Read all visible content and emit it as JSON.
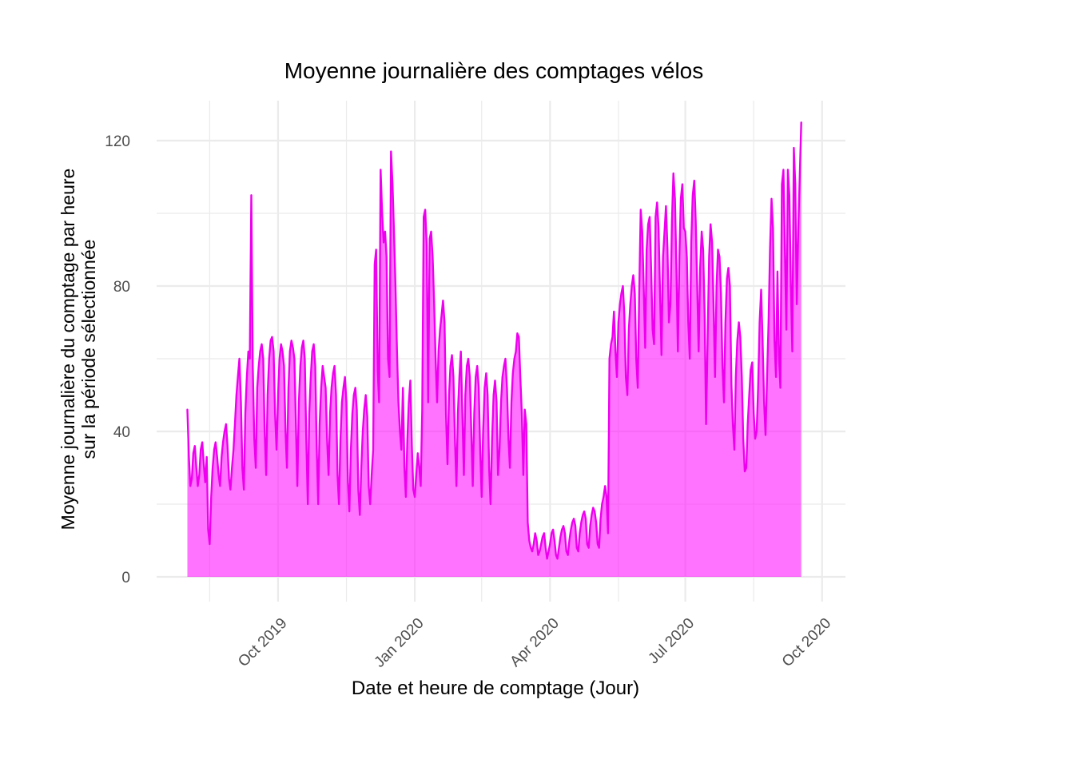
{
  "chart_data": {
    "type": "area",
    "title": "Moyenne journalière des comptages vélos",
    "xlabel": "Date et heure de comptage (Jour)",
    "ylabel_line1": "Moyenne journalière du comptage par heure",
    "ylabel_line2": "sur la période sélectionnée",
    "start_date": "2019-08-01",
    "end_date": "2020-09-17",
    "frequency": "daily",
    "ylim": [
      0,
      126
    ],
    "grid": true,
    "legend": "none",
    "y_ticks": [
      0,
      40,
      80,
      120
    ],
    "y_minor": [
      20,
      60,
      100
    ],
    "x_ticks": [
      {
        "label": "Oct 2019",
        "day": 61
      },
      {
        "label": "Jan 2020",
        "day": 153
      },
      {
        "label": "Apr 2020",
        "day": 244
      },
      {
        "label": "Jul 2020",
        "day": 335
      },
      {
        "label": "Oct 2020",
        "day": 427
      }
    ],
    "x_minor_days": [
      15,
      107,
      198,
      290,
      381
    ],
    "colors": {
      "line": "#EE00EE",
      "fill": "rgba(255,0,255,0.55)",
      "grid": "#EBEBEB",
      "tick_text": "#4D4D4D",
      "text": "#000000",
      "background": "#FFFFFF"
    },
    "values": [
      46,
      33,
      25,
      27,
      34,
      36,
      30,
      25,
      28,
      35,
      37,
      31,
      26,
      33,
      13,
      9,
      22,
      30,
      35,
      37,
      33,
      28,
      25,
      33,
      37,
      40,
      42,
      36,
      27,
      24,
      30,
      35,
      42,
      50,
      55,
      60,
      48,
      30,
      24,
      45,
      55,
      62,
      60,
      105,
      58,
      38,
      30,
      52,
      58,
      62,
      64,
      60,
      40,
      28,
      50,
      60,
      65,
      66,
      62,
      45,
      35,
      50,
      60,
      64,
      62,
      58,
      40,
      30,
      52,
      62,
      65,
      63,
      60,
      42,
      25,
      48,
      58,
      63,
      65,
      60,
      38,
      20,
      45,
      55,
      62,
      64,
      58,
      36,
      20,
      42,
      52,
      58,
      55,
      52,
      38,
      28,
      45,
      52,
      56,
      58,
      50,
      28,
      20,
      38,
      48,
      52,
      55,
      48,
      26,
      18,
      35,
      45,
      50,
      52,
      46,
      24,
      17,
      30,
      40,
      46,
      50,
      44,
      25,
      20,
      28,
      35,
      86,
      90,
      57,
      48,
      112,
      100,
      92,
      95,
      88,
      60,
      55,
      117,
      108,
      95,
      80,
      62,
      48,
      40,
      35,
      52,
      30,
      22,
      38,
      48,
      54,
      36,
      24,
      22,
      28,
      34,
      30,
      25,
      46,
      99,
      101,
      91,
      48,
      93,
      95,
      88,
      75,
      60,
      48,
      62,
      68,
      72,
      76,
      70,
      45,
      31,
      50,
      58,
      61,
      55,
      38,
      25,
      45,
      55,
      62,
      45,
      28,
      50,
      58,
      60,
      55,
      40,
      25,
      45,
      55,
      58,
      52,
      35,
      22,
      40,
      52,
      56,
      50,
      30,
      20,
      38,
      50,
      54,
      48,
      28,
      35,
      48,
      55,
      58,
      60,
      52,
      38,
      30,
      48,
      56,
      60,
      62,
      67,
      66,
      55,
      45,
      28,
      46,
      42,
      15,
      10,
      8,
      7,
      9,
      12,
      10,
      6,
      7,
      9,
      11,
      12,
      8,
      5,
      7,
      9,
      12,
      13,
      10,
      6,
      5,
      8,
      11,
      13,
      14,
      12,
      7,
      6,
      10,
      13,
      15,
      16,
      14,
      8,
      7,
      12,
      15,
      17,
      18,
      16,
      9,
      8,
      14,
      17,
      19,
      18,
      15,
      9,
      8,
      16,
      20,
      22,
      25,
      22,
      12,
      60,
      64,
      66,
      73,
      62,
      55,
      70,
      75,
      78,
      80,
      72,
      55,
      50,
      68,
      75,
      80,
      83,
      78,
      60,
      52,
      78,
      101,
      95,
      80,
      63,
      90,
      97,
      99,
      85,
      68,
      64,
      99,
      103,
      96,
      78,
      61,
      88,
      95,
      102,
      90,
      70,
      75,
      98,
      111,
      104,
      86,
      62,
      88,
      104,
      108,
      96,
      95,
      88,
      70,
      60,
      92,
      105,
      109,
      98,
      80,
      62,
      85,
      95,
      90,
      72,
      42,
      65,
      88,
      97,
      92,
      75,
      55,
      80,
      90,
      88,
      78,
      58,
      48,
      70,
      82,
      85,
      80,
      53,
      42,
      35,
      55,
      65,
      70,
      66,
      55,
      38,
      29,
      30,
      42,
      50,
      57,
      59,
      45,
      38,
      40,
      52,
      70,
      79,
      65,
      48,
      39,
      55,
      70,
      90,
      104,
      96,
      65,
      55,
      84,
      60,
      52,
      108,
      112,
      90,
      68,
      112,
      105,
      80,
      62,
      118,
      108,
      75,
      96,
      110,
      125
    ]
  }
}
